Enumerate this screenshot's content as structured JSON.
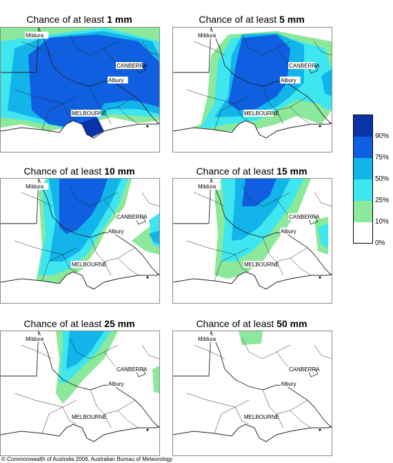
{
  "panels": [
    {
      "prefix": "Chance of at least ",
      "amount": "1 mm"
    },
    {
      "prefix": "Chance of at least ",
      "amount": "5 mm"
    },
    {
      "prefix": "Chance of at least ",
      "amount": "10 mm"
    },
    {
      "prefix": "Chance of at least ",
      "amount": "15 mm"
    },
    {
      "prefix": "Chance of at least ",
      "amount": "25 mm"
    },
    {
      "prefix": "Chance of at least ",
      "amount": "50 mm"
    }
  ],
  "places": {
    "mildura": "Mildura",
    "canberra": "CANBERRA",
    "albury": "Albury",
    "melbourne": "MELBOURNE"
  },
  "legend": {
    "labels": [
      "90%",
      "75%",
      "50%",
      "25%",
      "10%",
      "0%"
    ],
    "colors": [
      "#0a33a8",
      "#0f5fe0",
      "#12b4ea",
      "#3ee6f0",
      "#8ce89a",
      "#ffffff"
    ]
  },
  "footer": "© Commonwealth of Australia 2006, Australian Bureau of Meteorology"
}
